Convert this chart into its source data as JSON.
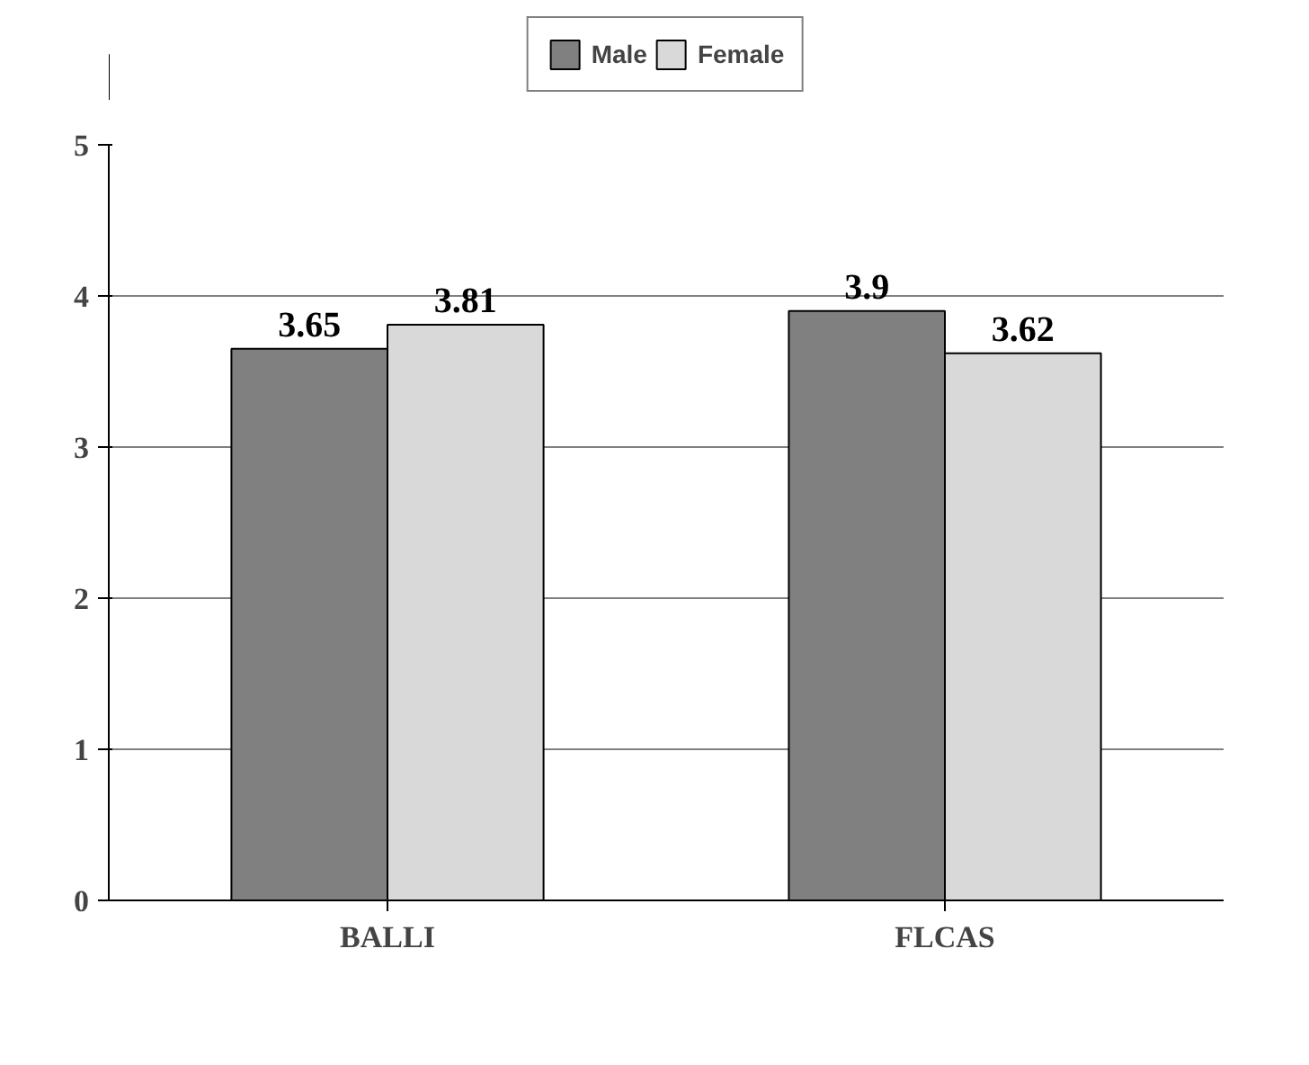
{
  "chart_data": {
    "type": "bar",
    "categories": [
      "BALLI",
      "FLCAS"
    ],
    "series": [
      {
        "name": "Male",
        "color": "#808080",
        "values": [
          3.65,
          3.9
        ]
      },
      {
        "name": "Female",
        "color": "#d9d9d9",
        "values": [
          3.81,
          3.62
        ]
      }
    ],
    "ylim": [
      0,
      5
    ],
    "yticks": [
      0,
      1,
      2,
      3,
      4,
      5
    ],
    "grid": "y",
    "legend": "top",
    "data_labels": true
  }
}
